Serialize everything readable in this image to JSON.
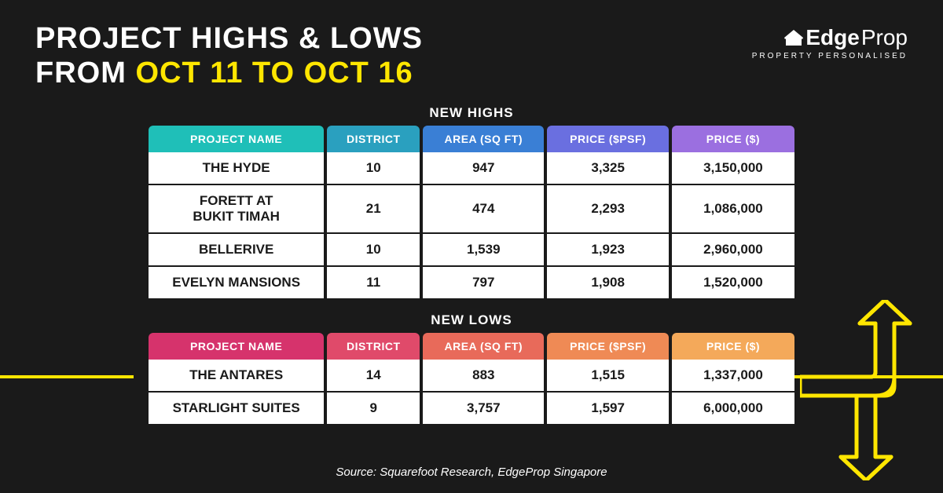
{
  "title": {
    "line1_a": "PROJECT HIGHS & LOWS",
    "line2_a": "FROM ",
    "line2_b": "OCT 11 TO OCT 16"
  },
  "logo": {
    "brand_a": "Edge",
    "brand_b": "Prop",
    "tagline": "PROPERTY PERSONALISED"
  },
  "sections": {
    "highs_label": "NEW HIGHS",
    "lows_label": "NEW LOWS"
  },
  "columns": {
    "name": "PROJECT NAME",
    "district": "DISTRICT",
    "area": "AREA (SQ FT)",
    "psf": "PRICE ($PSF)",
    "price": "PRICE ($)"
  },
  "highs_header_colors": {
    "name": "#1fbfb8",
    "district": "#2aa0bf",
    "area": "#3a7fd5",
    "psf": "#6a6fe0",
    "price": "#9b6fe0"
  },
  "lows_header_colors": {
    "name": "#d6336c",
    "district": "#e04a6a",
    "area": "#e86a5a",
    "psf": "#ef8a55",
    "price": "#f4a95a"
  },
  "highs": [
    {
      "name": "THE HYDE",
      "district": "10",
      "area": "947",
      "psf": "3,325",
      "price": "3,150,000"
    },
    {
      "name": "FORETT AT\nBUKIT TIMAH",
      "district": "21",
      "area": "474",
      "psf": "2,293",
      "price": "1,086,000"
    },
    {
      "name": "BELLERIVE",
      "district": "10",
      "area": "1,539",
      "psf": "1,923",
      "price": "2,960,000"
    },
    {
      "name": "EVELYN MANSIONS",
      "district": "11",
      "area": "797",
      "psf": "1,908",
      "price": "1,520,000"
    }
  ],
  "lows": [
    {
      "name": "THE ANTARES",
      "district": "14",
      "area": "883",
      "psf": "1,515",
      "price": "1,337,000"
    },
    {
      "name": "STARLIGHT SUITES",
      "district": "9",
      "area": "3,757",
      "psf": "1,597",
      "price": "6,000,000"
    }
  ],
  "source": "Source: Squarefoot Research, EdgeProp Singapore",
  "accent_color": "#ffe600",
  "background_color": "#1a1a1a"
}
